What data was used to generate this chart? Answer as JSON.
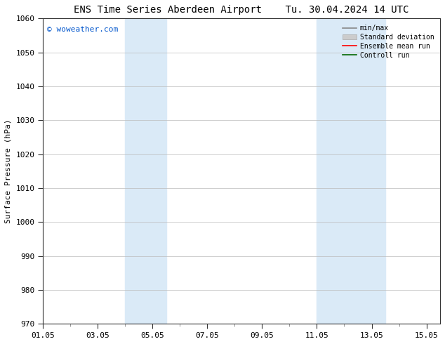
{
  "title_left": "ENS Time Series Aberdeen Airport",
  "title_right": "Tu. 30.04.2024 14 UTC",
  "ylabel": "Surface Pressure (hPa)",
  "ylim": [
    970,
    1060
  ],
  "yticks": [
    970,
    980,
    990,
    1000,
    1010,
    1020,
    1030,
    1040,
    1050,
    1060
  ],
  "xlim": [
    0,
    14.5
  ],
  "xtick_labels": [
    "01.05",
    "03.05",
    "05.05",
    "07.05",
    "09.05",
    "11.05",
    "13.05",
    "15.05"
  ],
  "xtick_positions": [
    0,
    2,
    4,
    6,
    8,
    10,
    12,
    14
  ],
  "shade_bands": [
    {
      "xmin": 3.0,
      "xmax": 4.5
    },
    {
      "xmin": 10.0,
      "xmax": 12.5
    }
  ],
  "shade_color": "#daeaf7",
  "watermark": "© woweather.com",
  "watermark_color": "#0055cc",
  "legend_entries": [
    {
      "label": "min/max",
      "color": "#888888",
      "lw": 1.2,
      "type": "line"
    },
    {
      "label": "Standard deviation",
      "color": "#cccccc",
      "lw": 6,
      "type": "bar"
    },
    {
      "label": "Ensemble mean run",
      "color": "#ff0000",
      "lw": 1.2,
      "type": "line"
    },
    {
      "label": "Controll run",
      "color": "#006600",
      "lw": 1.2,
      "type": "line"
    }
  ],
  "bg_color": "#ffffff",
  "plot_bg_color": "#ffffff",
  "grid_color": "#bbbbbb",
  "title_fontsize": 10,
  "axis_label_fontsize": 8,
  "tick_fontsize": 8
}
